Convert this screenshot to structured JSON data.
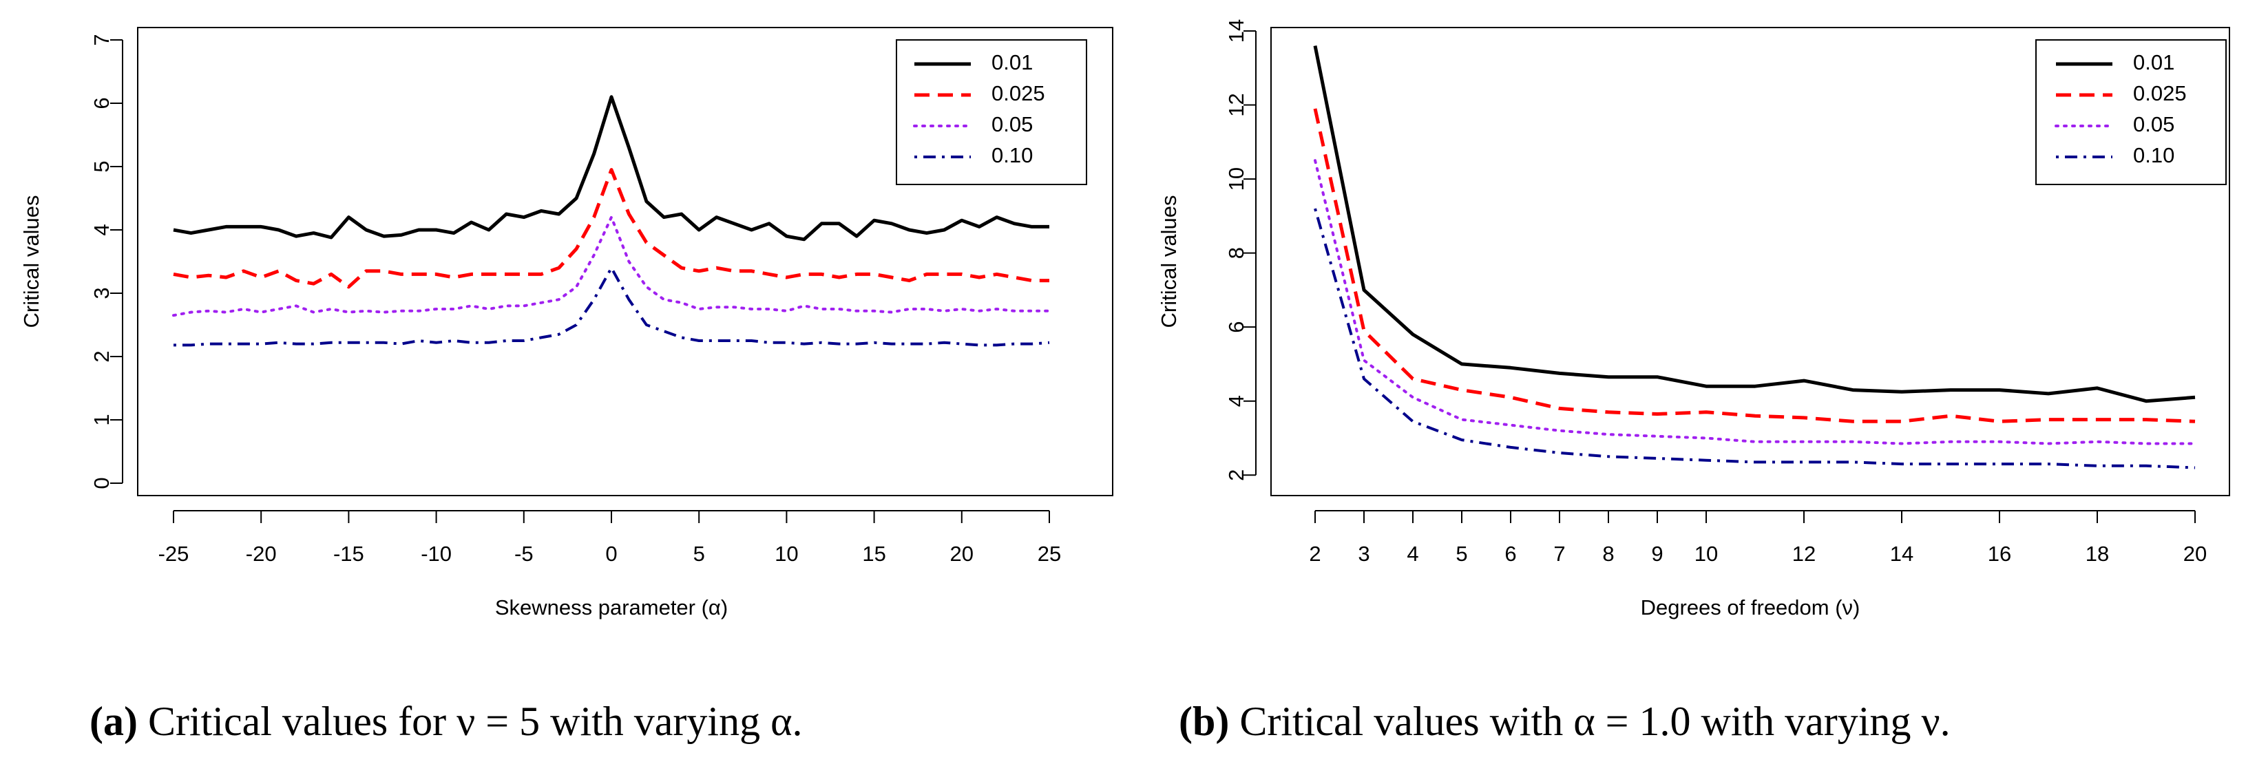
{
  "chart_data": [
    {
      "type": "line",
      "panel": "a",
      "xlabel": "Skewness parameter (α)",
      "ylabel": "Critical values",
      "xlim": [
        -25,
        25
      ],
      "ylim": [
        0,
        7
      ],
      "xticks": [
        -25,
        -20,
        -15,
        -10,
        -5,
        0,
        5,
        10,
        15,
        20,
        25
      ],
      "yticks": [
        0,
        1,
        2,
        3,
        4,
        5,
        6,
        7
      ],
      "legend_position": "top-right",
      "x": [
        -25,
        -24,
        -23,
        -22,
        -21,
        -20,
        -19,
        -18,
        -17,
        -16,
        -15,
        -14,
        -13,
        -12,
        -11,
        -10,
        -9,
        -8,
        -7,
        -6,
        -5,
        -4,
        -3,
        -2,
        -1,
        0,
        1,
        2,
        3,
        4,
        5,
        6,
        7,
        8,
        9,
        10,
        11,
        12,
        13,
        14,
        15,
        16,
        17,
        18,
        19,
        20,
        21,
        22,
        23,
        24,
        25
      ],
      "series": [
        {
          "name": "0.01",
          "color": "#000000",
          "dash": "solid",
          "values": [
            4.0,
            3.95,
            4.0,
            4.05,
            4.05,
            4.05,
            4.0,
            3.9,
            3.95,
            3.88,
            4.2,
            4.0,
            3.9,
            3.92,
            4.0,
            4.0,
            3.95,
            4.12,
            4.0,
            4.25,
            4.2,
            4.3,
            4.25,
            4.5,
            5.2,
            6.1,
            5.3,
            4.45,
            4.2,
            4.25,
            4.0,
            4.2,
            4.1,
            4.0,
            4.1,
            3.9,
            3.85,
            4.1,
            4.1,
            3.9,
            4.15,
            4.1,
            4.0,
            3.95,
            4.0,
            4.15,
            4.05,
            4.2,
            4.1,
            4.05,
            4.05
          ]
        },
        {
          "name": "0.025",
          "color": "#ff0000",
          "dash": "dashed",
          "values": [
            3.3,
            3.25,
            3.28,
            3.25,
            3.35,
            3.25,
            3.35,
            3.2,
            3.15,
            3.3,
            3.1,
            3.35,
            3.35,
            3.3,
            3.3,
            3.3,
            3.25,
            3.3,
            3.3,
            3.3,
            3.3,
            3.3,
            3.4,
            3.7,
            4.2,
            4.95,
            4.25,
            3.8,
            3.6,
            3.4,
            3.35,
            3.4,
            3.35,
            3.35,
            3.3,
            3.25,
            3.3,
            3.3,
            3.25,
            3.3,
            3.3,
            3.25,
            3.2,
            3.3,
            3.3,
            3.3,
            3.25,
            3.3,
            3.25,
            3.2,
            3.2
          ]
        },
        {
          "name": "0.05",
          "color": "#a020f0",
          "dash": "dotted",
          "values": [
            2.65,
            2.7,
            2.72,
            2.7,
            2.75,
            2.7,
            2.75,
            2.8,
            2.7,
            2.75,
            2.7,
            2.72,
            2.7,
            2.72,
            2.72,
            2.75,
            2.75,
            2.8,
            2.75,
            2.8,
            2.8,
            2.85,
            2.9,
            3.1,
            3.6,
            4.2,
            3.5,
            3.1,
            2.9,
            2.85,
            2.75,
            2.78,
            2.78,
            2.75,
            2.75,
            2.72,
            2.8,
            2.75,
            2.75,
            2.72,
            2.72,
            2.7,
            2.75,
            2.75,
            2.72,
            2.75,
            2.72,
            2.75,
            2.72,
            2.72,
            2.72
          ]
        },
        {
          "name": "0.10",
          "color": "#00008b",
          "dash": "dotdash",
          "values": [
            2.18,
            2.18,
            2.2,
            2.2,
            2.2,
            2.2,
            2.22,
            2.2,
            2.2,
            2.22,
            2.22,
            2.22,
            2.22,
            2.2,
            2.25,
            2.22,
            2.25,
            2.22,
            2.22,
            2.25,
            2.25,
            2.3,
            2.35,
            2.5,
            2.9,
            3.4,
            2.9,
            2.5,
            2.4,
            2.3,
            2.25,
            2.25,
            2.25,
            2.25,
            2.22,
            2.22,
            2.2,
            2.22,
            2.2,
            2.2,
            2.22,
            2.2,
            2.2,
            2.2,
            2.22,
            2.2,
            2.18,
            2.18,
            2.2,
            2.2,
            2.22
          ]
        }
      ]
    },
    {
      "type": "line",
      "panel": "b",
      "xlabel": "Degrees of freedom (ν)",
      "ylabel": "Critical values",
      "xlim": [
        2,
        20
      ],
      "ylim": [
        1,
        14
      ],
      "xticks": [
        2,
        3,
        4,
        5,
        6,
        7,
        8,
        9,
        10,
        12,
        14,
        16,
        18,
        20
      ],
      "yticks": [
        2,
        4,
        6,
        8,
        10,
        12,
        14
      ],
      "legend_position": "top-right",
      "x": [
        2,
        3,
        4,
        5,
        6,
        7,
        8,
        9,
        10,
        11,
        12,
        13,
        14,
        15,
        16,
        17,
        18,
        19,
        20
      ],
      "series": [
        {
          "name": "0.01",
          "color": "#000000",
          "dash": "solid",
          "values": [
            13.6,
            7.0,
            5.8,
            5.0,
            4.9,
            4.75,
            4.65,
            4.65,
            4.4,
            4.4,
            4.55,
            4.3,
            4.25,
            4.3,
            4.3,
            4.2,
            4.35,
            4.0,
            4.1
          ]
        },
        {
          "name": "0.025",
          "color": "#ff0000",
          "dash": "dashed",
          "values": [
            11.9,
            5.9,
            4.6,
            4.3,
            4.1,
            3.8,
            3.7,
            3.65,
            3.7,
            3.6,
            3.55,
            3.45,
            3.45,
            3.6,
            3.45,
            3.5,
            3.5,
            3.5,
            3.45
          ]
        },
        {
          "name": "0.05",
          "color": "#a020f0",
          "dash": "dotted",
          "values": [
            10.5,
            5.1,
            4.1,
            3.5,
            3.35,
            3.2,
            3.1,
            3.05,
            3.0,
            2.9,
            2.9,
            2.9,
            2.85,
            2.9,
            2.9,
            2.85,
            2.9,
            2.85,
            2.85
          ]
        },
        {
          "name": "0.10",
          "color": "#00008b",
          "dash": "dotdash",
          "values": [
            9.2,
            4.6,
            3.45,
            2.95,
            2.75,
            2.6,
            2.5,
            2.45,
            2.4,
            2.35,
            2.35,
            2.35,
            2.3,
            2.3,
            2.3,
            2.3,
            2.25,
            2.25,
            2.2
          ]
        }
      ]
    }
  ],
  "captions": [
    {
      "letter": "(a)",
      "text": " Critical values for ν = 5 with varying α."
    },
    {
      "letter": "(b)",
      "text": " Critical values with α = 1.0 with varying ν."
    }
  ]
}
